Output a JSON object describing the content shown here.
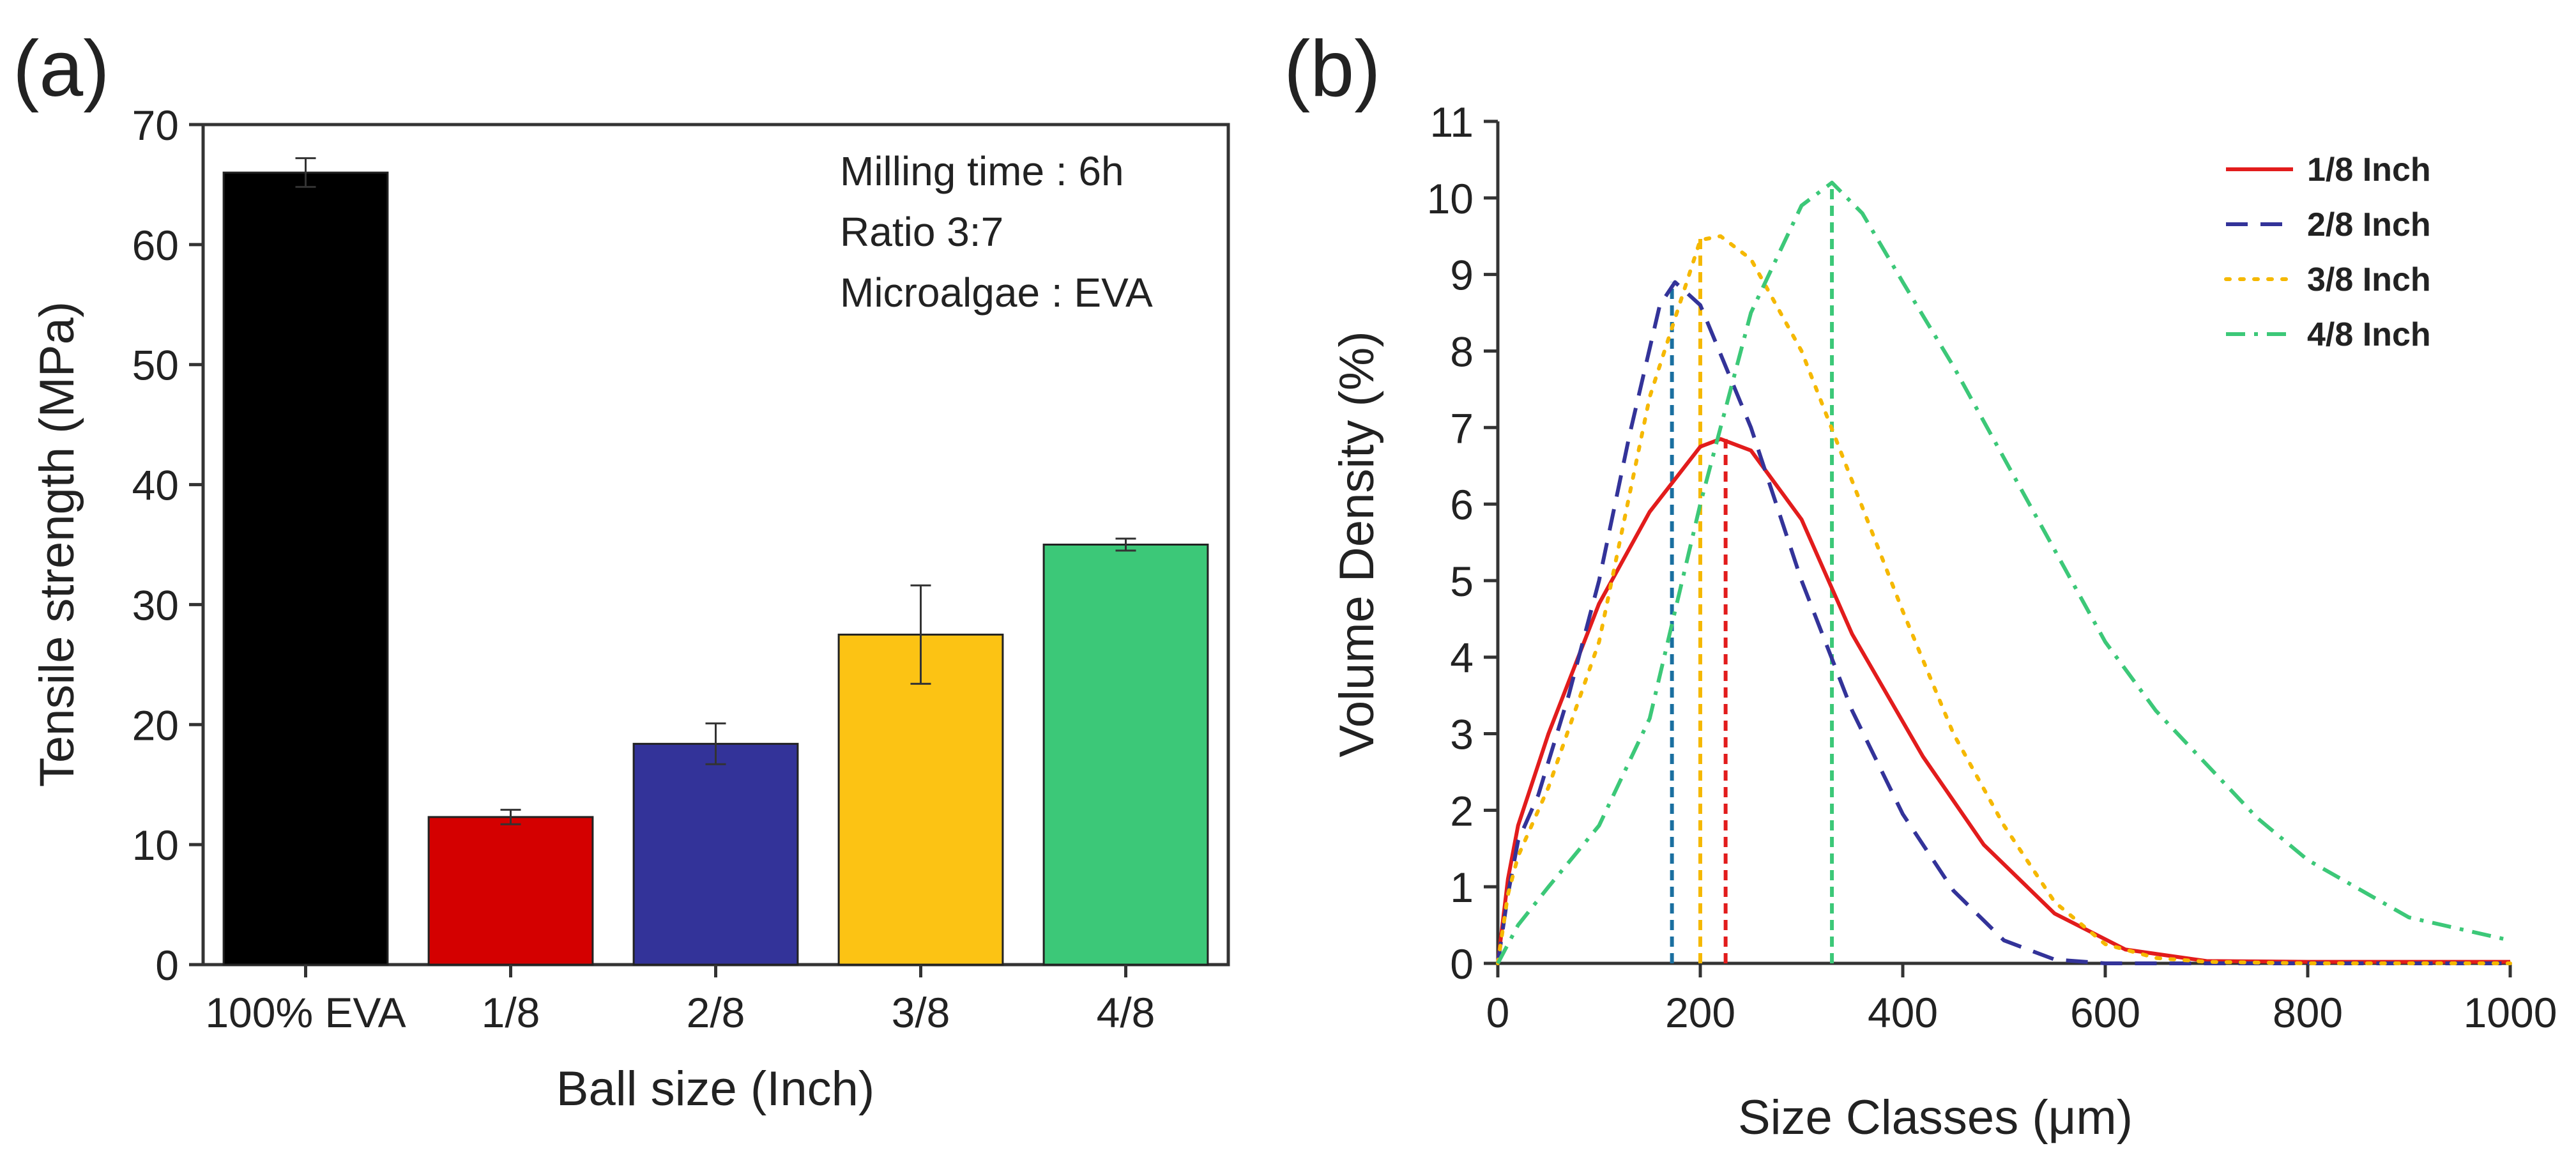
{
  "figure": {
    "panels": [
      "(a)",
      "(b)"
    ]
  },
  "chart_data": [
    {
      "type": "bar",
      "panel_label": "(a)",
      "title": "",
      "xlabel": "Ball size (Inch)",
      "ylabel": "Tensile strength (MPa)",
      "ylim": [
        0,
        70
      ],
      "yticks": [
        "0",
        "10",
        "20",
        "30",
        "40",
        "50",
        "60",
        "70"
      ],
      "categories": [
        "100% EVA",
        "1/8",
        "2/8",
        "3/8",
        "4/8"
      ],
      "values": [
        66,
        12.3,
        18.4,
        27.5,
        35.0
      ],
      "errors": [
        1.2,
        0.6,
        1.7,
        4.1,
        0.5
      ],
      "colors": [
        "#000000",
        "#d40000",
        "#333399",
        "#fcc314",
        "#3cc878"
      ],
      "annotations": [
        "Milling time : 6h",
        "Ratio 3:7",
        "Microalgae : EVA"
      ]
    },
    {
      "type": "line",
      "panel_label": "(b)",
      "title": "",
      "xlabel_prefix": "Size Classes (",
      "xlabel_unit": "μm",
      "xlabel_suffix": ")",
      "ylabel": "Volume Density (%)",
      "xlim": [
        0,
        1000
      ],
      "ylim": [
        0,
        11
      ],
      "xticks": [
        "0",
        "200",
        "400",
        "600",
        "800",
        "1000"
      ],
      "yticks": [
        "0",
        "1",
        "2",
        "3",
        "4",
        "5",
        "6",
        "7",
        "8",
        "9",
        "10",
        "11"
      ],
      "legend_position": "top-right",
      "series": [
        {
          "name": "1/8 Inch",
          "color": "#e21c1c",
          "dash": "solid",
          "peak_x": 225,
          "x": [
            0,
            10,
            20,
            50,
            100,
            150,
            200,
            220,
            250,
            300,
            350,
            420,
            480,
            550,
            620,
            700,
            800,
            1000
          ],
          "values": [
            0,
            1.1,
            1.8,
            3.0,
            4.7,
            5.9,
            6.75,
            6.85,
            6.7,
            5.8,
            4.3,
            2.7,
            1.55,
            0.65,
            0.18,
            0.03,
            0.02,
            0.02
          ]
        },
        {
          "name": "2/8 Inch",
          "color": "#333399",
          "dash": "dashed",
          "peak_x": 172,
          "x": [
            0,
            10,
            20,
            40,
            70,
            100,
            130,
            160,
            175,
            200,
            250,
            300,
            350,
            400,
            450,
            500,
            550,
            600,
            700,
            1000
          ],
          "values": [
            0,
            0.9,
            1.6,
            2.2,
            3.5,
            5.0,
            6.9,
            8.6,
            8.9,
            8.6,
            7.0,
            5.0,
            3.3,
            1.95,
            0.95,
            0.3,
            0.05,
            0.0,
            0.0,
            0.0
          ]
        },
        {
          "name": "3/8 Inch",
          "color": "#f5b800",
          "dash": "dotted",
          "peak_x": 200,
          "x": [
            0,
            10,
            20,
            50,
            100,
            150,
            200,
            220,
            250,
            300,
            350,
            400,
            450,
            500,
            550,
            600,
            650,
            700,
            800,
            1000
          ],
          "values": [
            0,
            0.9,
            1.4,
            2.3,
            4.2,
            7.4,
            9.45,
            9.5,
            9.2,
            8.0,
            6.3,
            4.6,
            3.0,
            1.8,
            0.8,
            0.25,
            0.07,
            0.02,
            0.0,
            0.0
          ]
        },
        {
          "name": "4/8 Inch",
          "color": "#3cc878",
          "dash": "dashdot",
          "peak_x": 330,
          "x": [
            0,
            20,
            50,
            100,
            150,
            200,
            250,
            300,
            330,
            360,
            400,
            450,
            500,
            550,
            600,
            650,
            700,
            750,
            800,
            900,
            1000
          ],
          "values": [
            0,
            0.5,
            1.0,
            1.8,
            3.2,
            6.0,
            8.5,
            9.9,
            10.2,
            9.8,
            8.9,
            7.8,
            6.6,
            5.4,
            4.2,
            3.3,
            2.6,
            1.9,
            1.35,
            0.6,
            0.3
          ]
        }
      ]
    }
  ]
}
